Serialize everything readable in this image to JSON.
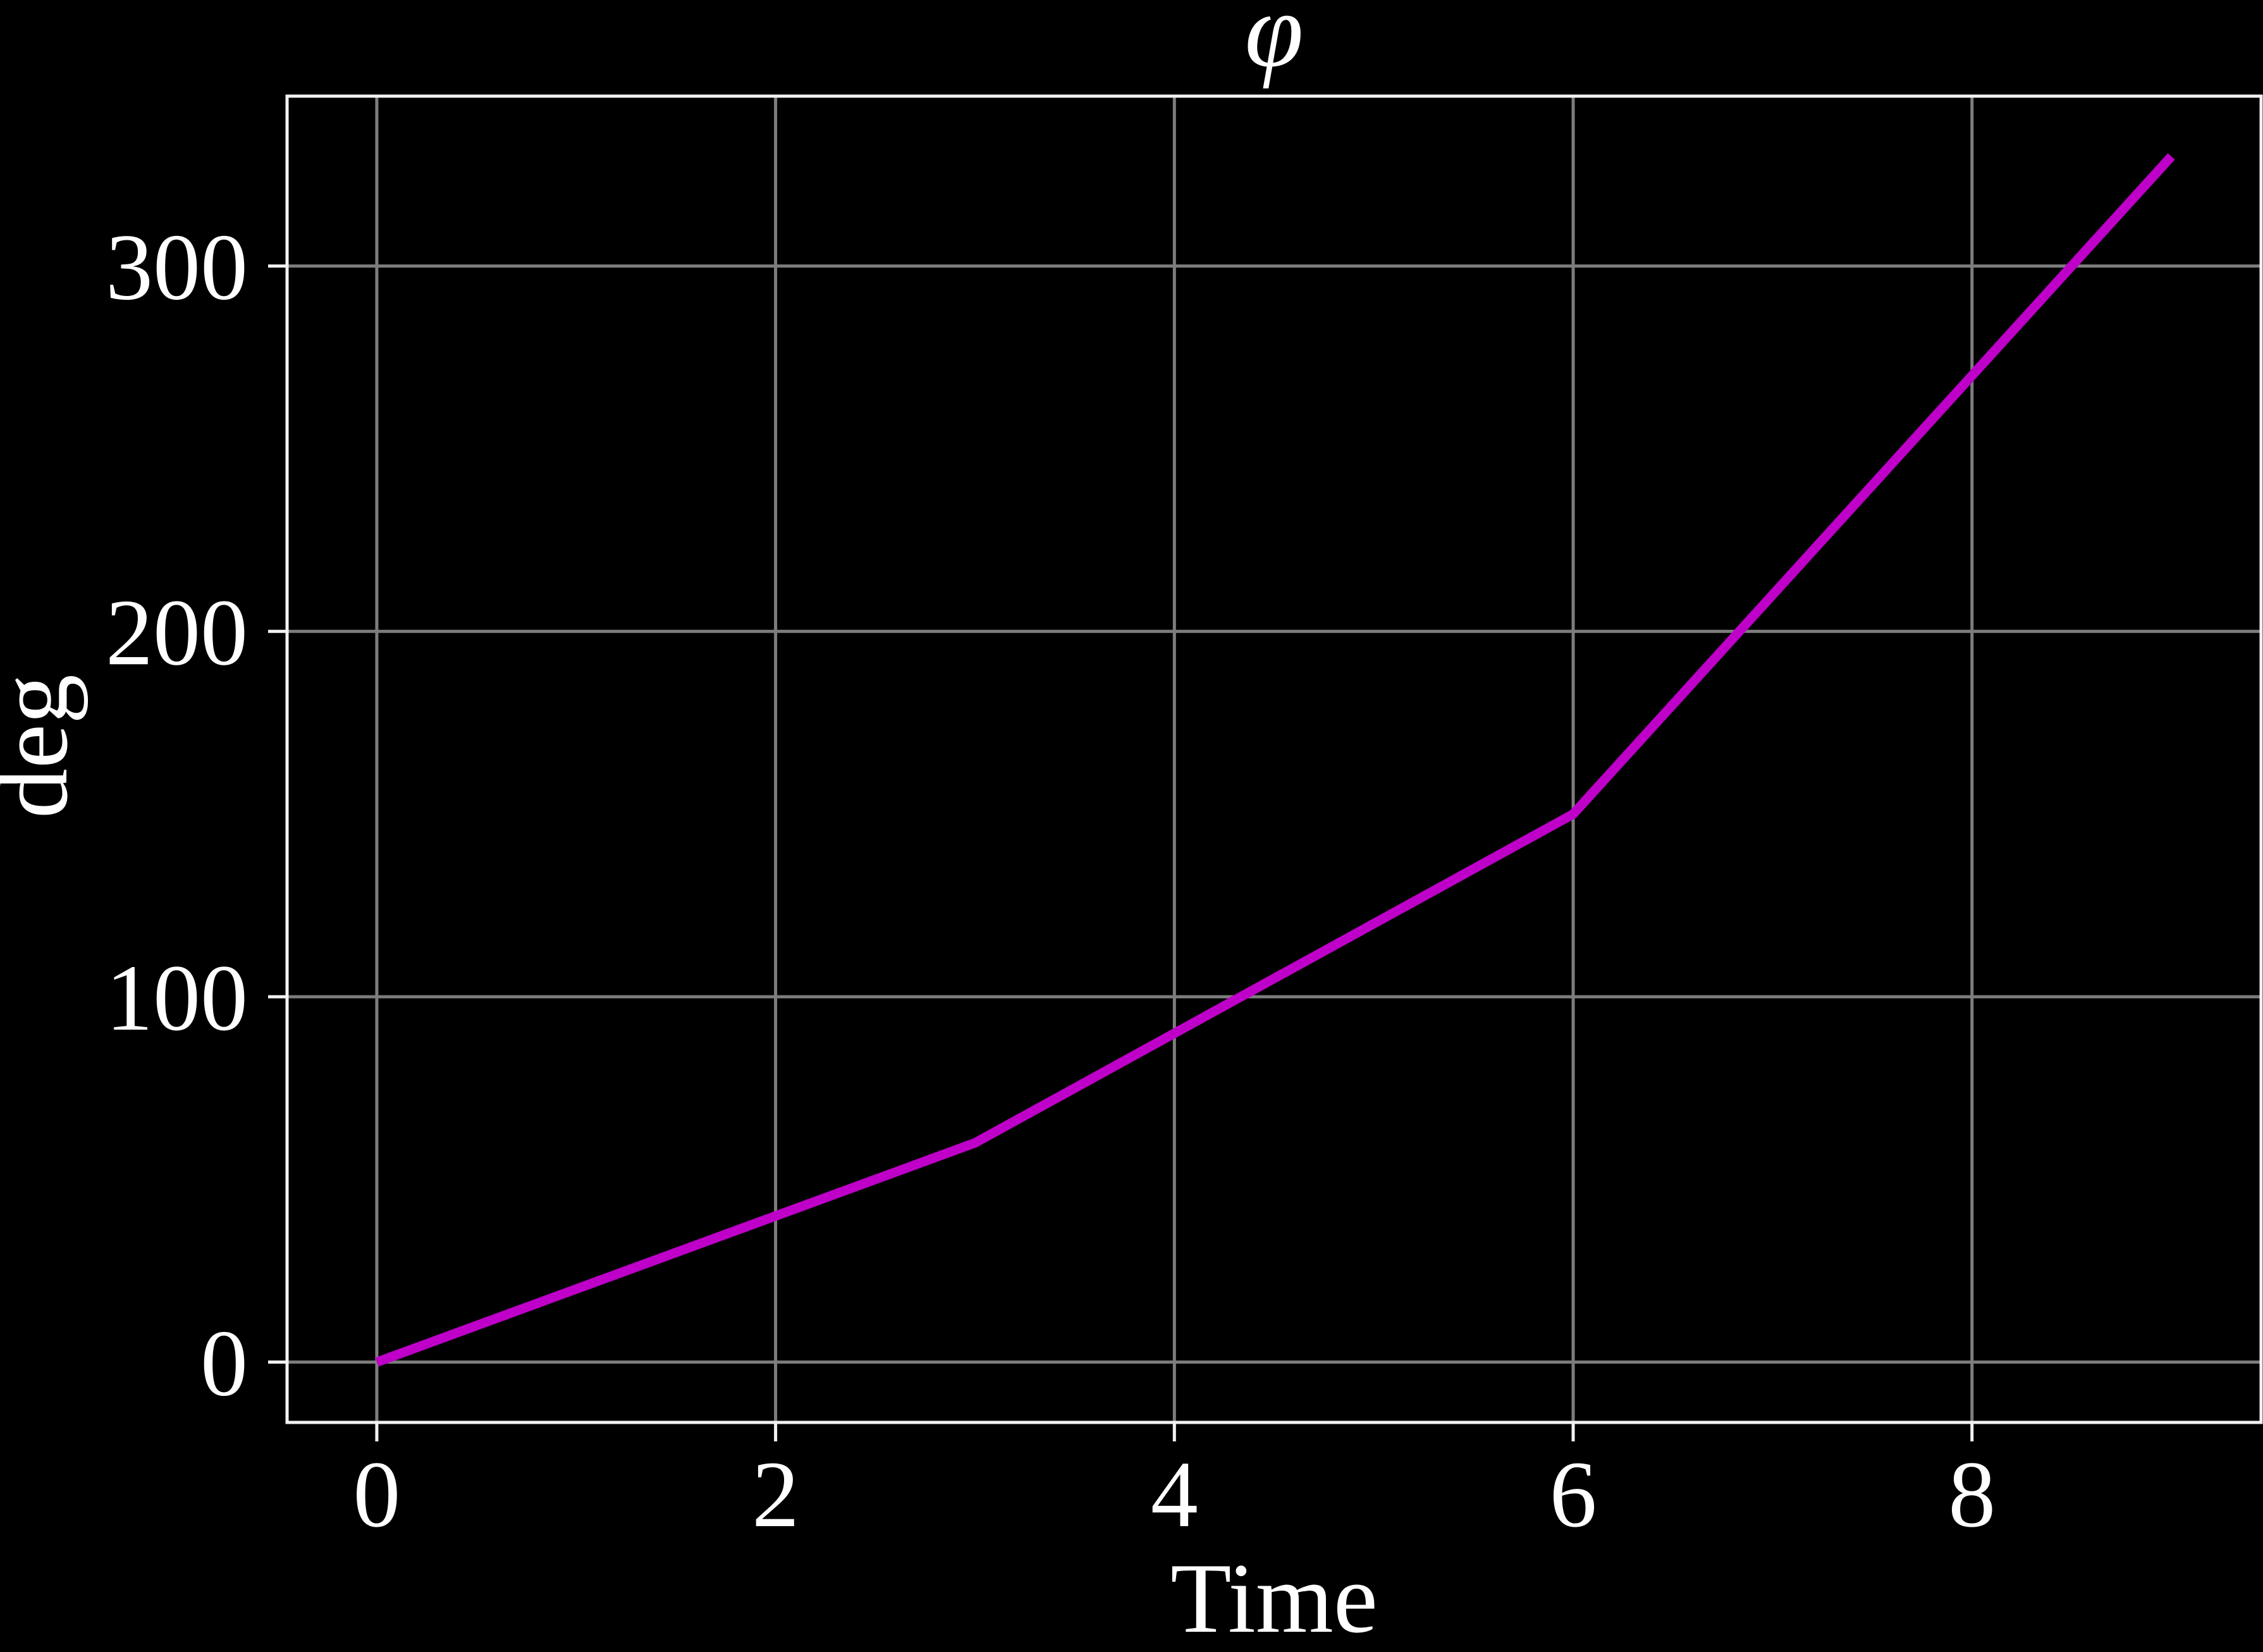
{
  "chart_data": {
    "type": "line",
    "title": "φ",
    "xlabel": "Time",
    "ylabel": "deg",
    "x": [
      0,
      3,
      6,
      9
    ],
    "y": [
      0,
      60,
      150,
      330
    ],
    "series": [
      {
        "name": "φ",
        "x": [
          0,
          3,
          6,
          9
        ],
        "y": [
          0,
          60,
          150,
          330
        ]
      }
    ],
    "xticks": [
      0,
      2,
      4,
      6,
      8
    ],
    "yticks": [
      0,
      100,
      200,
      300
    ],
    "xlim": [
      -0.45,
      9.45
    ],
    "ylim": [
      -16.5,
      346.5
    ],
    "grid": true,
    "legend_position": "none",
    "colors": {
      "background": "#000000",
      "text": "#ffffff",
      "grid": "#7d7d7d",
      "axis": "#f2f2f2",
      "line": "#be00c8"
    }
  }
}
